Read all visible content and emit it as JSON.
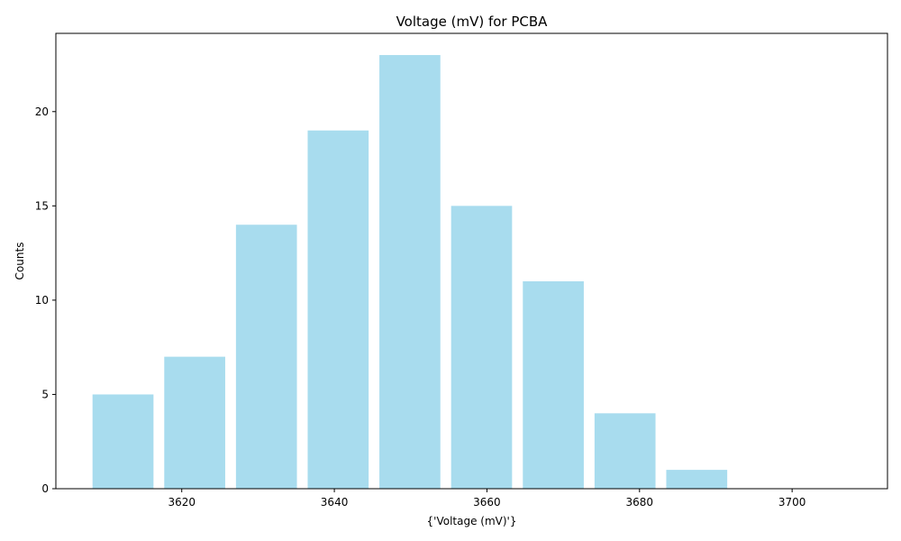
{
  "chart_data": {
    "type": "bar",
    "title": "Voltage (mV) for PCBA",
    "xlabel": "{'Voltage (mV)'}",
    "ylabel": "Counts",
    "bin_centers": [
      3612.2,
      3621.6,
      3631.0,
      3640.4,
      3649.8,
      3659.2,
      3668.6,
      3678.0,
      3687.4,
      3696.8
    ],
    "bars": [
      {
        "x": 3612.0,
        "value": 5
      },
      {
        "x": 3621.4,
        "value": 7
      },
      {
        "x": 3630.8,
        "value": 14
      },
      {
        "x": 3640.2,
        "value": 19
      },
      {
        "x": 3649.6,
        "value": 23
      },
      {
        "x": 3659.0,
        "value": 15
      },
      {
        "x": 3668.4,
        "value": 11
      },
      {
        "x": 3677.8,
        "value": 4
      },
      {
        "x": 3687.2,
        "value": 1
      }
    ],
    "xlim": [
      3603.5,
      3712.5
    ],
    "ylim": [
      0,
      24.15
    ],
    "xticks": [
      3620,
      3640,
      3660,
      3680,
      3700
    ],
    "yticks": [
      0,
      5,
      10,
      15,
      20
    ],
    "bar_color": "#a8dcee",
    "grid": false,
    "legend": "none"
  }
}
